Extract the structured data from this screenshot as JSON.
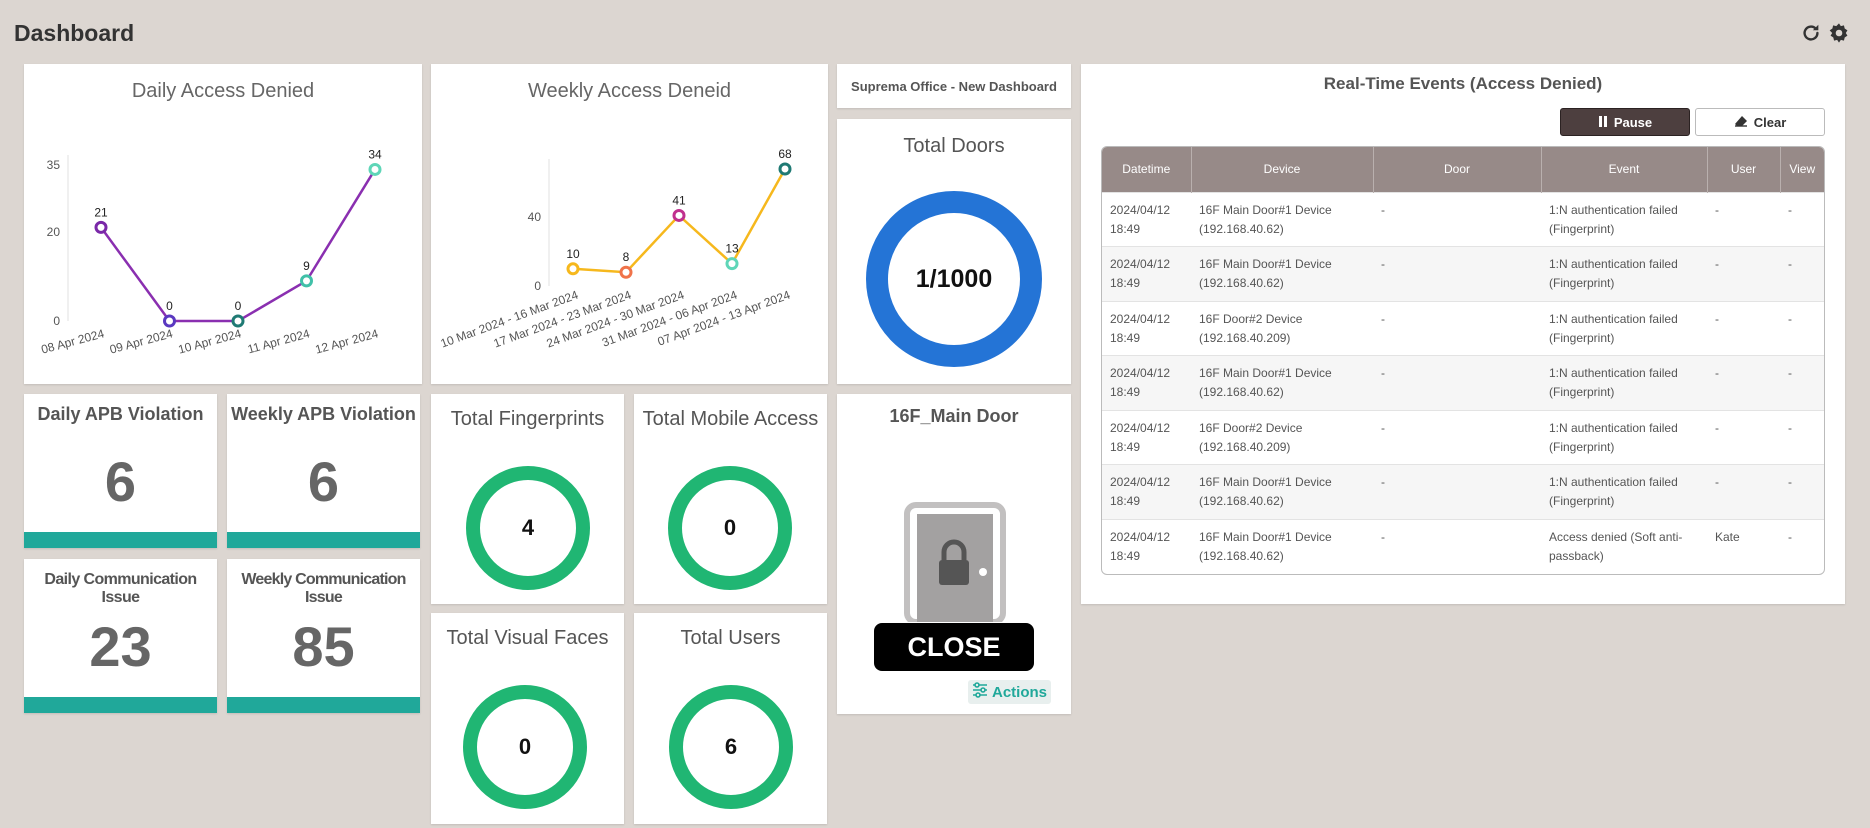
{
  "page": {
    "title": "Dashboard",
    "refresh_icon": "refresh-icon",
    "settings_icon": "gear-icon"
  },
  "daily_chart": {
    "title": "Daily Access Denied",
    "chart_data": {
      "type": "line",
      "categories": [
        "08 Apr 2024",
        "09 Apr 2024",
        "10 Apr 2024",
        "11 Apr 2024",
        "12 Apr 2024"
      ],
      "values": [
        21,
        0,
        0,
        9,
        34
      ],
      "yticks": [
        0,
        20,
        35
      ],
      "ylim": [
        0,
        35
      ],
      "line_color": "#8a2fb0",
      "marker_colors": [
        "#7a28a8",
        "#5a38c0",
        "#1f7a74",
        "#40c0a8",
        "#5fd6b8"
      ]
    }
  },
  "weekly_chart": {
    "title": "Weekly Access Deneid",
    "chart_data": {
      "type": "line",
      "categories": [
        "10 Mar 2024 - 16 Mar 2024",
        "17 Mar 2024 - 23 Mar 2024",
        "24 Mar 2024 - 30 Mar 2024",
        "31 Mar 2024 - 06 Apr 2024",
        "07 Apr 2024 - 13 Apr 2024"
      ],
      "values": [
        10,
        8,
        41,
        13,
        68
      ],
      "yticks": [
        0,
        40
      ],
      "ylim": [
        0,
        68
      ],
      "line_color": "#f6b81d",
      "marker_colors": [
        "#f6b81d",
        "#f0734a",
        "#c0308e",
        "#5fd6b8",
        "#1f7a74"
      ]
    }
  },
  "office_label": "Suprema Office - New Dashboard",
  "total_doors": {
    "title": "Total Doors",
    "value": "1/1000",
    "color": "#2474d6"
  },
  "stats": [
    {
      "title": "Daily APB Violation",
      "value": "6"
    },
    {
      "title": "Weekly APB Violation",
      "value": "6"
    },
    {
      "title": "Daily Communication Issue",
      "value": "23"
    },
    {
      "title": "Weekly Communication Issue",
      "value": "85"
    }
  ],
  "rings": [
    {
      "title": "Total Fingerprints",
      "value": "4"
    },
    {
      "title": "Total Mobile Access",
      "value": "0"
    },
    {
      "title": "Total Visual Faces",
      "value": "0"
    },
    {
      "title": "Total Users",
      "value": "6"
    }
  ],
  "door_widget": {
    "title": "16F_Main Door",
    "status": "CLOSE",
    "actions_label": "Actions",
    "door_icon": "locked-door-icon",
    "actions_icon": "sliders-icon"
  },
  "events": {
    "title": "Real-Time Events (Access Denied)",
    "pause_label": "Pause",
    "clear_label": "Clear",
    "columns": [
      "Datetime",
      "Device",
      "Door",
      "Event",
      "User",
      "View"
    ],
    "rows": [
      {
        "date": "2024/04/12",
        "time": "18:49",
        "device": "16F Main Door#1 Device",
        "ip": "(192.168.40.62)",
        "door": "-",
        "event1": "1:N authentication failed",
        "event2": "(Fingerprint)",
        "user": "-",
        "view": "-"
      },
      {
        "date": "2024/04/12",
        "time": "18:49",
        "device": "16F Main Door#1 Device",
        "ip": "(192.168.40.62)",
        "door": "-",
        "event1": "1:N authentication failed",
        "event2": "(Fingerprint)",
        "user": "-",
        "view": "-"
      },
      {
        "date": "2024/04/12",
        "time": "18:49",
        "device": "16F Door#2 Device",
        "ip": "(192.168.40.209)",
        "door": "-",
        "event1": "1:N authentication failed",
        "event2": "(Fingerprint)",
        "user": "-",
        "view": "-"
      },
      {
        "date": "2024/04/12",
        "time": "18:49",
        "device": "16F Main Door#1 Device",
        "ip": "(192.168.40.62)",
        "door": "-",
        "event1": "1:N authentication failed",
        "event2": "(Fingerprint)",
        "user": "-",
        "view": "-"
      },
      {
        "date": "2024/04/12",
        "time": "18:49",
        "device": "16F Door#2 Device",
        "ip": "(192.168.40.209)",
        "door": "-",
        "event1": "1:N authentication failed",
        "event2": "(Fingerprint)",
        "user": "-",
        "view": "-"
      },
      {
        "date": "2024/04/12",
        "time": "18:49",
        "device": "16F Main Door#1 Device",
        "ip": "(192.168.40.62)",
        "door": "-",
        "event1": "1:N authentication failed",
        "event2": "(Fingerprint)",
        "user": "-",
        "view": "-"
      },
      {
        "date": "2024/04/12",
        "time": "18:49",
        "device": "16F Main Door#1 Device",
        "ip": "(192.168.40.62)",
        "door": "-",
        "event1": "Access denied (Soft anti-",
        "event2": "passback)",
        "user": "Kate",
        "view": "-"
      }
    ]
  }
}
